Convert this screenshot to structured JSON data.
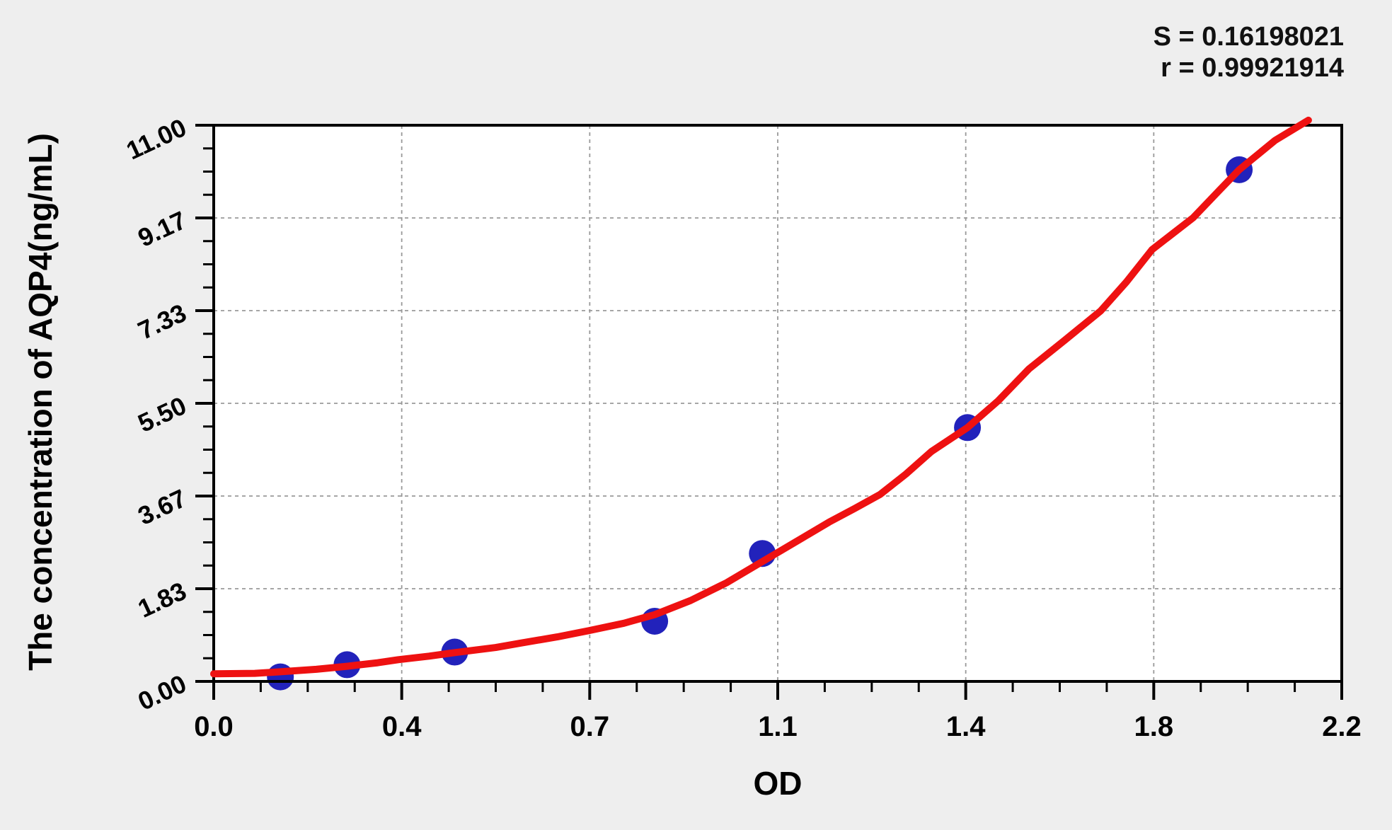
{
  "stats": {
    "s_label": "S = 0.16198021",
    "r_label": "r = 0.99921914"
  },
  "colors": {
    "background": "#eeeeee",
    "plot_background": "#ffffff",
    "axis": "#000000",
    "grid": "#999999",
    "point": "#2222bb",
    "curve": "#ee1111",
    "text": "#000000"
  },
  "chart_data": {
    "type": "scatter",
    "title": "",
    "xlabel": "OD",
    "ylabel": "The concentration of AQP4(ng/mL)",
    "xlim": [
      0,
      2.2
    ],
    "ylim": [
      0,
      11
    ],
    "grid": {
      "show": true,
      "style": "dashed"
    },
    "legend": "none",
    "x_ticks": {
      "labels": [
        "0.0",
        "0.4",
        "0.7",
        "1.1",
        "1.4",
        "1.8",
        "2.2"
      ],
      "minor_divisions": 4
    },
    "y_ticks": {
      "labels": [
        "0.00",
        "1.83",
        "3.67",
        "5.50",
        "7.33",
        "9.17",
        "11.00"
      ],
      "minor_divisions": 4,
      "label_angle_deg": -25
    },
    "fit_stats": {
      "S": "0.16198021",
      "r": "0.99921914"
    },
    "series": [
      {
        "name": "standard-points",
        "type": "scatter",
        "color": "#2222bb",
        "marker_radius": 19,
        "points": [
          [
            0.13,
            0.09
          ],
          [
            0.26,
            0.33
          ],
          [
            0.47,
            0.58
          ],
          [
            0.86,
            1.19
          ],
          [
            1.07,
            2.53
          ],
          [
            1.47,
            5.02
          ],
          [
            2.0,
            10.12
          ]
        ]
      },
      {
        "name": "fit-curve",
        "type": "line",
        "color": "#ee1111",
        "stroke_width": 10,
        "points": [
          [
            0.0,
            0.15
          ],
          [
            0.08,
            0.16
          ],
          [
            0.13,
            0.19
          ],
          [
            0.2,
            0.24
          ],
          [
            0.26,
            0.3
          ],
          [
            0.32,
            0.37
          ],
          [
            0.36,
            0.43
          ],
          [
            0.42,
            0.5
          ],
          [
            0.47,
            0.57
          ],
          [
            0.55,
            0.67
          ],
          [
            0.6,
            0.76
          ],
          [
            0.67,
            0.88
          ],
          [
            0.73,
            1.0
          ],
          [
            0.8,
            1.15
          ],
          [
            0.86,
            1.32
          ],
          [
            0.93,
            1.6
          ],
          [
            1.0,
            1.95
          ],
          [
            1.05,
            2.25
          ],
          [
            1.1,
            2.55
          ],
          [
            1.15,
            2.85
          ],
          [
            1.2,
            3.15
          ],
          [
            1.25,
            3.42
          ],
          [
            1.3,
            3.7
          ],
          [
            1.35,
            4.1
          ],
          [
            1.4,
            4.55
          ],
          [
            1.47,
            5.02
          ],
          [
            1.53,
            5.55
          ],
          [
            1.59,
            6.18
          ],
          [
            1.66,
            6.75
          ],
          [
            1.73,
            7.33
          ],
          [
            1.78,
            7.9
          ],
          [
            1.83,
            8.54
          ],
          [
            1.91,
            9.17
          ],
          [
            1.96,
            9.7
          ],
          [
            2.0,
            10.12
          ],
          [
            2.07,
            10.7
          ],
          [
            2.135,
            11.1
          ]
        ]
      }
    ]
  }
}
